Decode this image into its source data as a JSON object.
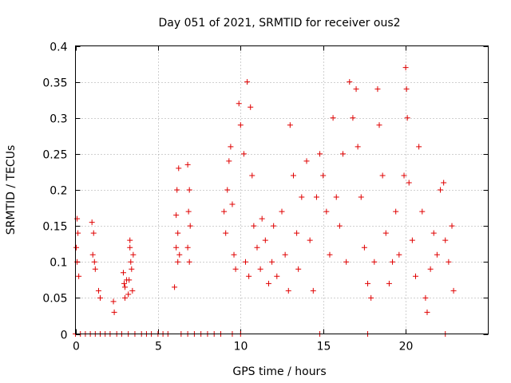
{
  "chart_data": {
    "type": "scatter",
    "title": "Day 051 of 2021, SRMTID for receiver ous2",
    "xlabel": "GPS time / hours",
    "ylabel": "SRMTID / TECUs",
    "xlim": [
      0,
      25
    ],
    "ylim": [
      0,
      0.4
    ],
    "x_ticks": [
      0,
      5,
      10,
      15,
      20
    ],
    "x_tick_labels": [
      "0",
      "5",
      "10",
      "15",
      "20"
    ],
    "y_ticks": [
      0,
      0.05,
      0.1,
      0.15,
      0.2,
      0.25,
      0.3,
      0.35,
      0.4
    ],
    "y_tick_labels": [
      "0",
      "0.05",
      "0.1",
      "0.15",
      "0.2",
      "0.25",
      "0.3",
      "0.35",
      "0.4"
    ],
    "grid": true,
    "marker": "+",
    "marker_color": "#e00000",
    "series": [
      {
        "name": "SRMTID",
        "points": [
          [
            0.1,
            0.16
          ],
          [
            0.15,
            0.14
          ],
          [
            0.1,
            0.1
          ],
          [
            0.2,
            0.08
          ],
          [
            0.05,
            0.12
          ],
          [
            1.0,
            0.155
          ],
          [
            1.1,
            0.14
          ],
          [
            1.05,
            0.11
          ],
          [
            1.2,
            0.09
          ],
          [
            1.15,
            0.1
          ],
          [
            1.4,
            0.06
          ],
          [
            1.5,
            0.05
          ],
          [
            2.3,
            0.045
          ],
          [
            2.35,
            0.03
          ],
          [
            2.9,
            0.085
          ],
          [
            3.0,
            0.065
          ],
          [
            3.1,
            0.075
          ],
          [
            3.0,
            0.05
          ],
          [
            3.2,
            0.055
          ],
          [
            2.95,
            0.07
          ],
          [
            3.3,
            0.12
          ],
          [
            3.35,
            0.1
          ],
          [
            3.4,
            0.09
          ],
          [
            3.5,
            0.11
          ],
          [
            3.3,
            0.13
          ],
          [
            3.25,
            0.075
          ],
          [
            3.45,
            0.06
          ],
          [
            6.0,
            0.065
          ],
          [
            6.1,
            0.12
          ],
          [
            6.2,
            0.14
          ],
          [
            6.15,
            0.2
          ],
          [
            6.25,
            0.23
          ],
          [
            6.1,
            0.165
          ],
          [
            6.2,
            0.1
          ],
          [
            6.3,
            0.11
          ],
          [
            6.8,
            0.235
          ],
          [
            6.9,
            0.2
          ],
          [
            6.85,
            0.17
          ],
          [
            6.95,
            0.15
          ],
          [
            6.8,
            0.12
          ],
          [
            6.9,
            0.1
          ],
          [
            9.0,
            0.17
          ],
          [
            9.2,
            0.2
          ],
          [
            9.3,
            0.24
          ],
          [
            9.4,
            0.26
          ],
          [
            9.5,
            0.18
          ],
          [
            9.1,
            0.14
          ],
          [
            9.6,
            0.11
          ],
          [
            9.7,
            0.09
          ],
          [
            9.9,
            0.32
          ],
          [
            10.0,
            0.29
          ],
          [
            10.2,
            0.25
          ],
          [
            10.3,
            0.1
          ],
          [
            10.5,
            0.08
          ],
          [
            10.4,
            0.35
          ],
          [
            10.6,
            0.315
          ],
          [
            10.7,
            0.22
          ],
          [
            10.8,
            0.15
          ],
          [
            11.0,
            0.12
          ],
          [
            11.2,
            0.09
          ],
          [
            11.3,
            0.16
          ],
          [
            11.5,
            0.13
          ],
          [
            11.7,
            0.07
          ],
          [
            11.9,
            0.1
          ],
          [
            12.0,
            0.15
          ],
          [
            12.2,
            0.08
          ],
          [
            12.5,
            0.17
          ],
          [
            12.7,
            0.11
          ],
          [
            12.9,
            0.06
          ],
          [
            13.0,
            0.29
          ],
          [
            13.2,
            0.22
          ],
          [
            13.4,
            0.14
          ],
          [
            13.5,
            0.09
          ],
          [
            13.7,
            0.19
          ],
          [
            14.0,
            0.24
          ],
          [
            14.2,
            0.13
          ],
          [
            14.4,
            0.06
          ],
          [
            14.6,
            0.19
          ],
          [
            14.8,
            0.25
          ],
          [
            15.0,
            0.22
          ],
          [
            15.2,
            0.17
          ],
          [
            15.4,
            0.11
          ],
          [
            15.6,
            0.3
          ],
          [
            15.8,
            0.19
          ],
          [
            16.0,
            0.15
          ],
          [
            16.2,
            0.25
          ],
          [
            16.4,
            0.1
          ],
          [
            16.6,
            0.35
          ],
          [
            16.8,
            0.3
          ],
          [
            17.0,
            0.34
          ],
          [
            17.1,
            0.26
          ],
          [
            17.3,
            0.19
          ],
          [
            17.5,
            0.12
          ],
          [
            17.7,
            0.07
          ],
          [
            17.9,
            0.05
          ],
          [
            18.1,
            0.1
          ],
          [
            18.3,
            0.34
          ],
          [
            18.4,
            0.29
          ],
          [
            18.6,
            0.22
          ],
          [
            18.8,
            0.14
          ],
          [
            19.0,
            0.07
          ],
          [
            19.2,
            0.1
          ],
          [
            19.4,
            0.17
          ],
          [
            19.6,
            0.11
          ],
          [
            19.9,
            0.22
          ],
          [
            20.0,
            0.37
          ],
          [
            20.05,
            0.34
          ],
          [
            20.1,
            0.3
          ],
          [
            20.2,
            0.21
          ],
          [
            20.4,
            0.13
          ],
          [
            20.6,
            0.08
          ],
          [
            20.8,
            0.26
          ],
          [
            21.0,
            0.17
          ],
          [
            21.2,
            0.05
          ],
          [
            21.3,
            0.03
          ],
          [
            21.5,
            0.09
          ],
          [
            21.7,
            0.14
          ],
          [
            21.9,
            0.11
          ],
          [
            22.1,
            0.2
          ],
          [
            22.3,
            0.21
          ],
          [
            22.4,
            0.13
          ],
          [
            22.6,
            0.1
          ],
          [
            22.8,
            0.15
          ],
          [
            22.9,
            0.06
          ],
          [
            0.0,
            0.0
          ],
          [
            0.3,
            0.0
          ],
          [
            0.6,
            0.0
          ],
          [
            0.9,
            0.0
          ],
          [
            1.2,
            0.0
          ],
          [
            1.5,
            0.0
          ],
          [
            1.8,
            0.0
          ],
          [
            2.1,
            0.0
          ],
          [
            2.5,
            0.0
          ],
          [
            2.8,
            0.0
          ],
          [
            3.2,
            0.0
          ],
          [
            3.6,
            0.0
          ],
          [
            4.0,
            0.0
          ],
          [
            4.3,
            0.0
          ],
          [
            4.6,
            0.0
          ],
          [
            5.0,
            0.0
          ],
          [
            5.3,
            0.0
          ],
          [
            5.6,
            0.0
          ],
          [
            6.4,
            0.0
          ],
          [
            6.8,
            0.0
          ],
          [
            7.2,
            0.0
          ],
          [
            7.6,
            0.0
          ],
          [
            8.0,
            0.0
          ],
          [
            8.4,
            0.0
          ],
          [
            8.8,
            0.0
          ],
          [
            9.5,
            0.0
          ],
          [
            10.0,
            0.0
          ],
          [
            14.8,
            0.0
          ],
          [
            17.7,
            0.0
          ],
          [
            22.4,
            0.0
          ]
        ]
      }
    ]
  }
}
